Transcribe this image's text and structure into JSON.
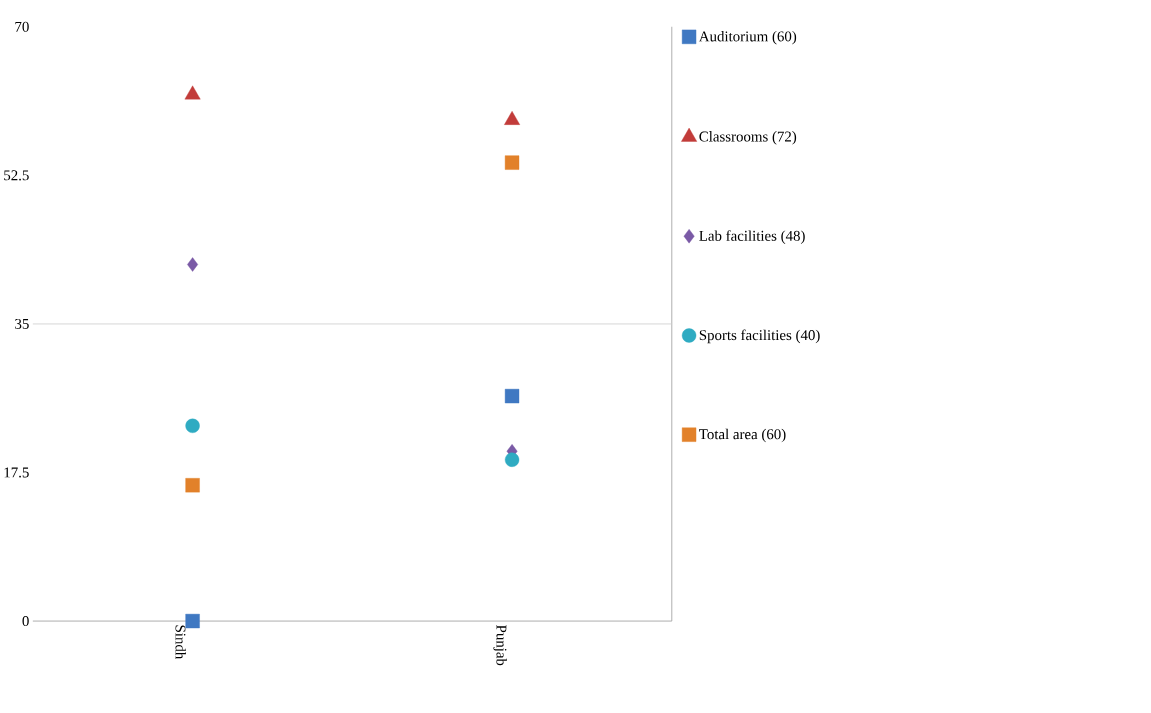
{
  "chart_data": {
    "type": "scatter",
    "categories": [
      "Sindh",
      "Punjab"
    ],
    "series": [
      {
        "name": "Auditorium (60)",
        "color": "#3f78c2",
        "marker": "square",
        "values": [
          0,
          26.5
        ]
      },
      {
        "name": "Classrooms (72)",
        "color": "#c23c3a",
        "marker": "triangle",
        "values": [
          62,
          59
        ]
      },
      {
        "name": "Lab facilities (48)",
        "color": "#7a5aa6",
        "marker": "diamond",
        "values": [
          42,
          20
        ]
      },
      {
        "name": "Sports facilities (40)",
        "color": "#2fabc2",
        "marker": "circle",
        "values": [
          23,
          19
        ]
      },
      {
        "name": "Total area (60)",
        "color": "#e2812a",
        "marker": "square",
        "values": [
          16,
          54
        ]
      }
    ],
    "ylim": [
      0,
      70
    ],
    "yticks": [
      0,
      17.5,
      35,
      52.5,
      70
    ],
    "ref_lines": [
      {
        "axis": "y",
        "value": 35,
        "color": "#cccccc"
      }
    ],
    "legend": "right"
  }
}
